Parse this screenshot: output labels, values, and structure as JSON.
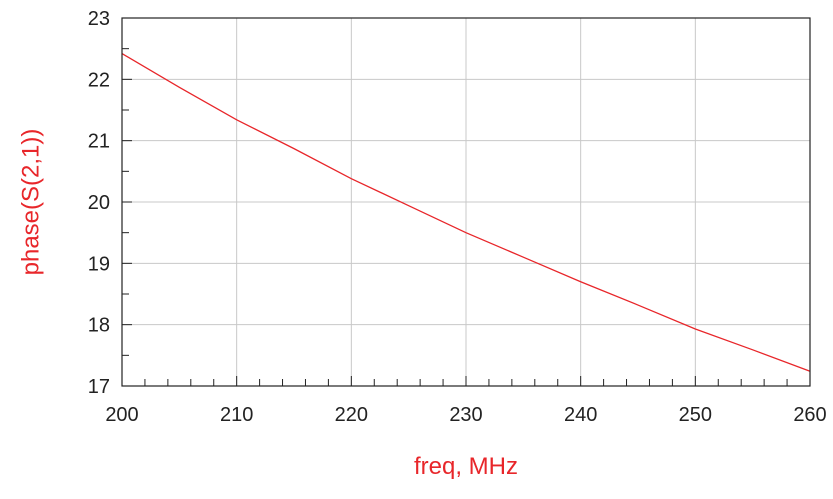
{
  "chart_data": {
    "type": "line",
    "title": "",
    "xlabel": "freq, MHz",
    "ylabel": "phase(S(2,1))",
    "xlim": [
      200,
      260
    ],
    "ylim": [
      17,
      23
    ],
    "xticks": [
      200,
      210,
      220,
      230,
      240,
      250,
      260
    ],
    "yticks": [
      17,
      18,
      19,
      20,
      21,
      22,
      23
    ],
    "x_minor_step": 2,
    "y_minor_step": 0.5,
    "grid": true,
    "colors": {
      "line": "#e8262a",
      "label": "#e8262a",
      "grid": "#c8c8c8",
      "frame": "#222222"
    },
    "series": [
      {
        "x": [
          200,
          205,
          210,
          215,
          220,
          225,
          230,
          235,
          240,
          245,
          250,
          255,
          260
        ],
        "y": [
          22.42,
          21.87,
          21.34,
          20.87,
          20.38,
          19.94,
          19.5,
          19.1,
          18.7,
          18.32,
          17.93,
          17.59,
          17.24
        ]
      }
    ]
  }
}
